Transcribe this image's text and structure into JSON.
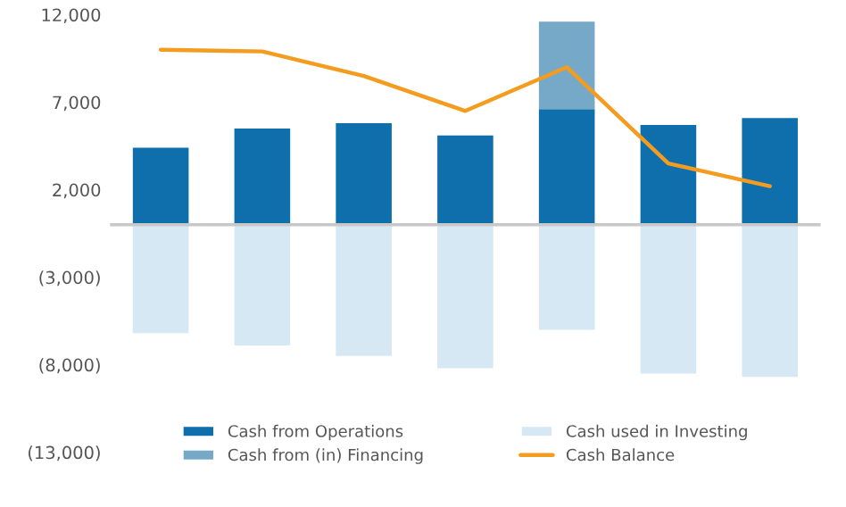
{
  "chart_data": {
    "type": "bar",
    "stacked": true,
    "categories": [
      null,
      null,
      null,
      null,
      null,
      null,
      null
    ],
    "series": [
      {
        "name": "Cash from Operations",
        "color": "#0f6fad",
        "values": [
          4400,
          5500,
          5800,
          5100,
          6600,
          5700,
          6100
        ]
      },
      {
        "name": "Cash used in Investing",
        "color": "#d6e8f4",
        "values": [
          -6200,
          -6900,
          -7500,
          -8200,
          -6000,
          -8500,
          -8700
        ]
      },
      {
        "name": "Cash from (in) Financing",
        "color": "#75a9c7",
        "values": [
          null,
          null,
          null,
          null,
          5000,
          null,
          null
        ]
      },
      {
        "name": "Cash Balance",
        "type": "line",
        "color": "#f39c1f",
        "values": [
          10000,
          9900,
          8500,
          6500,
          9000,
          3500,
          2200
        ]
      }
    ],
    "ylim": [
      -13000,
      12000
    ],
    "yticks": [
      {
        "value": 12000,
        "label": "12,000"
      },
      {
        "value": 7000,
        "label": "7,000"
      },
      {
        "value": 2000,
        "label": "2,000"
      },
      {
        "value": -3000,
        "label": "(3,000)"
      },
      {
        "value": -8000,
        "label": "(8,000)"
      },
      {
        "value": -13000,
        "label": "(13,000)"
      }
    ],
    "tick_labels": "y",
    "grid": false,
    "legend": "bottom"
  }
}
